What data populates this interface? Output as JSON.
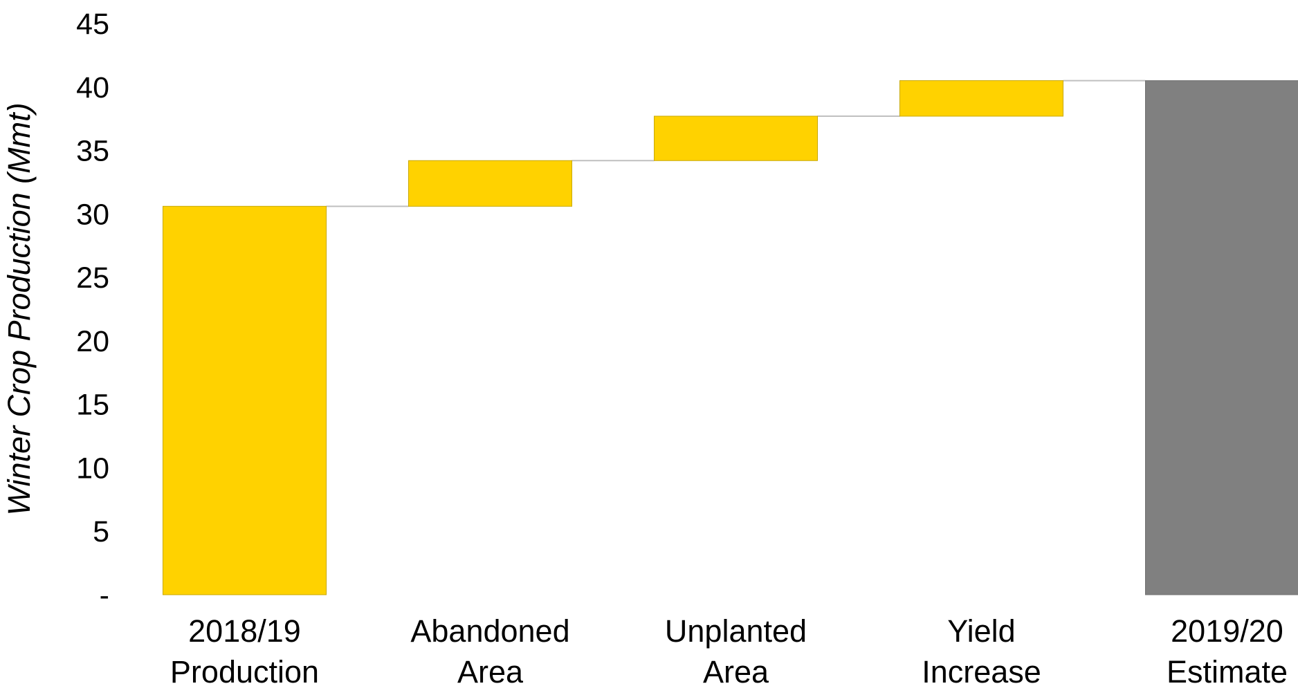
{
  "chart_data": {
    "type": "bar",
    "subtype": "waterfall",
    "ylabel": "Winter Crop Production (Mmt)",
    "ylim": [
      0,
      45
    ],
    "yticks": [
      {
        "value": 0,
        "label": "-"
      },
      {
        "value": 5,
        "label": "5"
      },
      {
        "value": 10,
        "label": "10"
      },
      {
        "value": 15,
        "label": "15"
      },
      {
        "value": 20,
        "label": "20"
      },
      {
        "value": 25,
        "label": "25"
      },
      {
        "value": 30,
        "label": "30"
      },
      {
        "value": 35,
        "label": "35"
      },
      {
        "value": 40,
        "label": "40"
      },
      {
        "value": 45,
        "label": "45"
      }
    ],
    "grid": false,
    "categories": [
      {
        "line1": "2018/19",
        "line2": "Production"
      },
      {
        "line1": "Abandoned",
        "line2": "Area"
      },
      {
        "line1": "Unplanted",
        "line2": "Area"
      },
      {
        "line1": "Yield",
        "line2": "Increase"
      },
      {
        "line1": "2019/20",
        "line2": "Estimate"
      }
    ],
    "bars": [
      {
        "base": 0,
        "value": 30.6,
        "kind": "total"
      },
      {
        "base": 30.6,
        "value": 3.6,
        "kind": "change"
      },
      {
        "base": 34.2,
        "value": 3.5,
        "kind": "change"
      },
      {
        "base": 37.7,
        "value": 2.8,
        "kind": "change"
      },
      {
        "base": 0,
        "value": 40.5,
        "kind": "total"
      }
    ],
    "colors": {
      "bar_default": "#FFD200",
      "bar_final": "#808080",
      "bar_edge": "#C8A800",
      "connector": "#BFBFBF"
    }
  }
}
